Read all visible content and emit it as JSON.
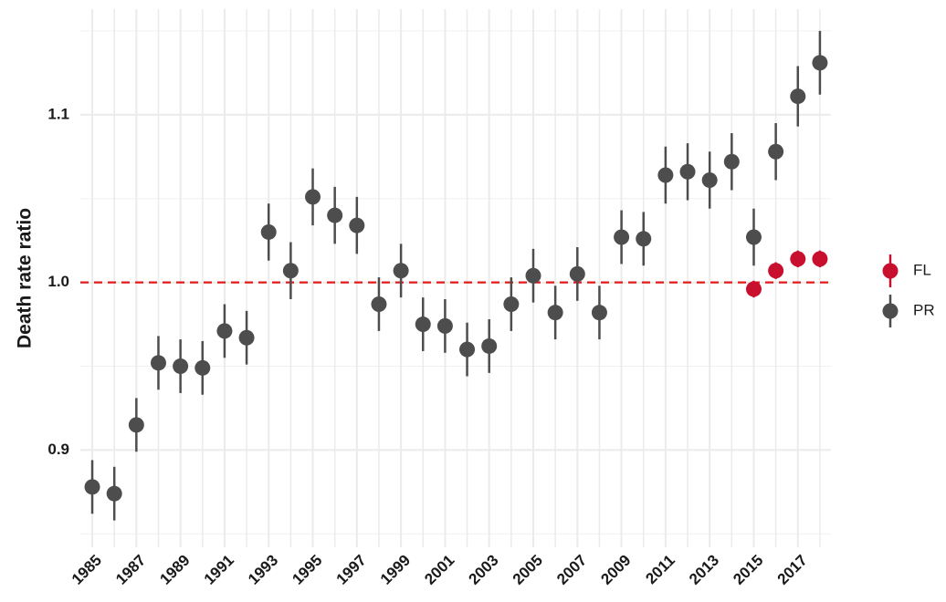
{
  "chart_data": {
    "type": "pointrange",
    "y_label": "Death rate ratio",
    "xlim": [
      1984.46,
      2018.5
    ],
    "xticks": [
      1985,
      1987,
      1989,
      1991,
      1993,
      1995,
      1997,
      1999,
      2001,
      2003,
      2005,
      2007,
      2009,
      2011,
      2013,
      2015,
      2017
    ],
    "xminor": [
      1986,
      1988,
      1990,
      1992,
      1994,
      1996,
      1998,
      2000,
      2002,
      2004,
      2006,
      2008,
      2010,
      2012,
      2014,
      2016,
      2018
    ],
    "ylim": [
      0.842,
      1.163
    ],
    "yticks": [
      0.9,
      {
        "value": 1,
        "label": "1.0"
      },
      1.1
    ],
    "yminor": [
      0.85,
      0.95,
      1.05,
      1.15
    ],
    "grid": true,
    "reference_line": {
      "value": 1,
      "color": "#e31a1c"
    },
    "legend": "right",
    "series": [
      {
        "name": "FL",
        "color": "#c8102e",
        "x": [
          2015,
          2016,
          2017,
          2018
        ],
        "values": [
          0.996,
          1.007,
          1.014,
          1.014
        ],
        "errors": [
          0.005,
          0.005,
          0.005,
          0.005
        ]
      },
      {
        "name": "PR",
        "color": "#4d4d4d",
        "x": [
          1985,
          1986,
          1987,
          1988,
          1989,
          1990,
          1991,
          1992,
          1993,
          1994,
          1995,
          1996,
          1997,
          1998,
          1999,
          2000,
          2001,
          2002,
          2003,
          2004,
          2005,
          2006,
          2007,
          2008,
          2009,
          2010,
          2011,
          2012,
          2013,
          2014,
          2015,
          2016,
          2017,
          2018
        ],
        "values": [
          0.878,
          0.874,
          0.915,
          0.952,
          0.95,
          0.949,
          0.971,
          0.967,
          1.03,
          1.007,
          1.051,
          1.04,
          1.034,
          0.987,
          1.007,
          0.975,
          0.974,
          0.96,
          0.962,
          0.987,
          1.004,
          0.982,
          1.005,
          0.982,
          1.027,
          1.026,
          1.064,
          1.066,
          1.061,
          1.072,
          1.027,
          1.078,
          1.111,
          1.131
        ],
        "errors": [
          0.016,
          0.016,
          0.016,
          0.016,
          0.016,
          0.016,
          0.016,
          0.016,
          0.017,
          0.017,
          0.017,
          0.017,
          0.017,
          0.016,
          0.016,
          0.016,
          0.016,
          0.016,
          0.016,
          0.016,
          0.016,
          0.016,
          0.016,
          0.016,
          0.016,
          0.016,
          0.017,
          0.017,
          0.017,
          0.017,
          0.017,
          0.017,
          0.018,
          0.019
        ]
      }
    ]
  }
}
